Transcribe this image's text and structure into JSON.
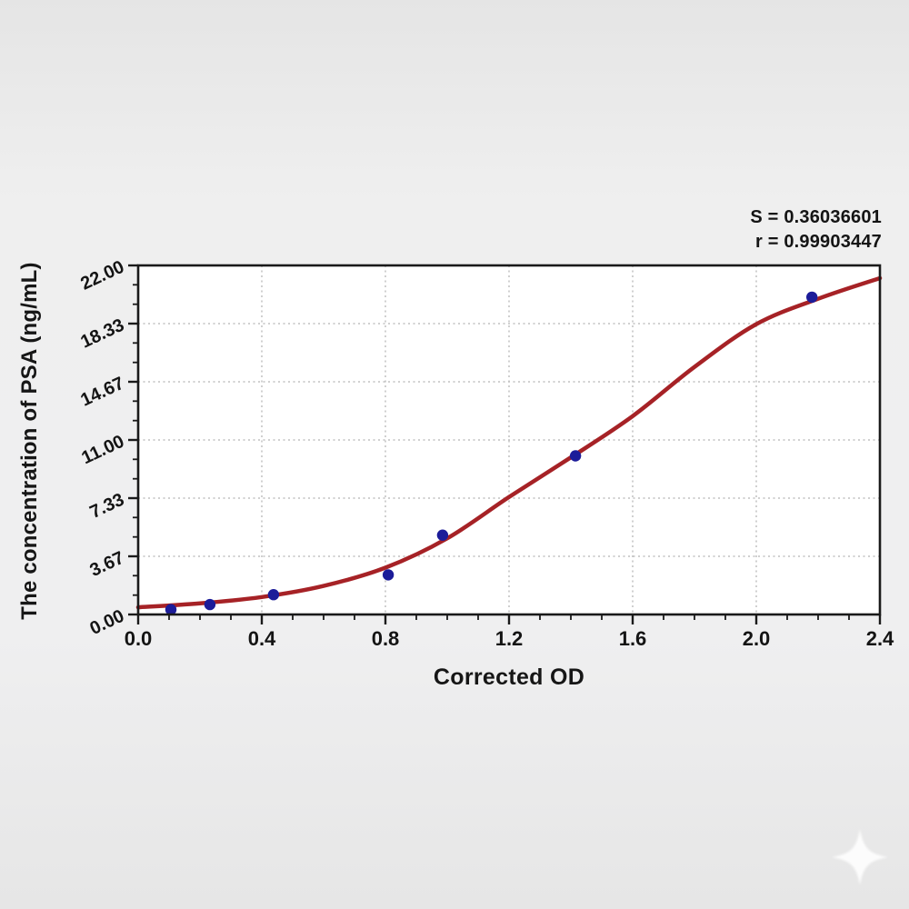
{
  "chart_data": {
    "type": "scatter",
    "title": "",
    "xlabel": "Corrected OD",
    "ylabel": "The concentration of PSA (ng/mL)",
    "xlim": [
      0,
      2.4
    ],
    "ylim": [
      0,
      22
    ],
    "grid": true,
    "legend_position": "none",
    "x_tick_labels": [
      "0.0",
      "0.4",
      "0.8",
      "1.2",
      "1.6",
      "2.0",
      "2.4"
    ],
    "y_tick_labels": [
      "0.00",
      "3.67",
      "7.33",
      "11.00",
      "14.67",
      "18.33",
      "22.00"
    ],
    "x_minor_divisions": 4,
    "y_minor_divisions": 3,
    "annotations": {
      "s_value": "S = 0.36036601",
      "r_value": "r = 0.99903447"
    },
    "series": [
      {
        "name": "standard points",
        "type": "scatter",
        "x": [
          0.106,
          0.232,
          0.438,
          0.809,
          0.985,
          1.415,
          2.18
        ],
        "y": [
          0.312,
          0.625,
          1.25,
          2.5,
          5.0,
          10.0,
          20.0
        ]
      },
      {
        "name": "4PL fit curve",
        "type": "line",
        "x": [
          0,
          0.2,
          0.4,
          0.6,
          0.8,
          1.0,
          1.2,
          1.4,
          1.6,
          1.8,
          2.0,
          2.2,
          2.4
        ],
        "y": [
          0.45,
          0.7,
          1.1,
          1.8,
          2.95,
          4.8,
          7.4,
          9.9,
          12.5,
          15.6,
          18.3,
          19.9,
          21.2
        ]
      }
    ],
    "colors": {
      "curve": "#a62226",
      "points": "#1c1c99",
      "grid": "#c0c0c0",
      "axis": "#1a1a1a",
      "text": "#141414",
      "plot_bg": "#ffffff",
      "page_bg": "#ececec"
    }
  },
  "watermark": {
    "icon": "sparkle"
  }
}
